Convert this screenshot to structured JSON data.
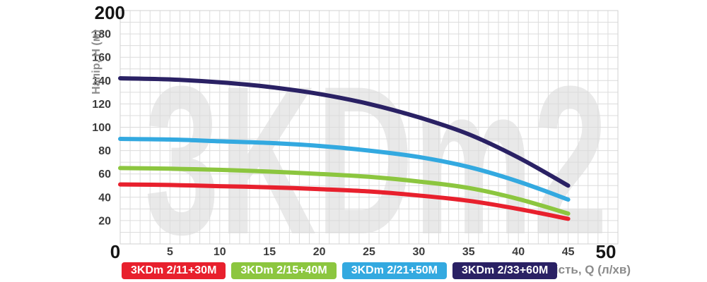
{
  "watermark": "3KDm2",
  "chart_data": {
    "type": "line",
    "title": "",
    "xlabel": "Продуктивність, Q (л/хв)",
    "ylabel": "Напір, H (м)",
    "xlim": [
      0,
      50
    ],
    "ylim": [
      0,
      200
    ],
    "x_ticks": [
      0,
      5,
      10,
      15,
      20,
      25,
      30,
      35,
      40,
      45,
      50
    ],
    "y_ticks": [
      20,
      40,
      60,
      80,
      100,
      120,
      140,
      160,
      180,
      200
    ],
    "grid": {
      "visible": true,
      "x_minor_step": 1,
      "y_minor_step": 10,
      "line_color": "#dcdcdc"
    },
    "legend_position": "bottom",
    "x": [
      0,
      5,
      10,
      15,
      20,
      25,
      30,
      35,
      40,
      45
    ],
    "series": [
      {
        "name": "3KDm 2/11+30M",
        "color": "#e8202d",
        "values": [
          51,
          50.5,
          49.5,
          48.5,
          47,
          45,
          41.5,
          37,
          30,
          21.5
        ]
      },
      {
        "name": "3KDm 2/15+40M",
        "color": "#8cc63f",
        "values": [
          65,
          64.5,
          63.5,
          62,
          60,
          57.5,
          53.5,
          48,
          38.5,
          26
        ]
      },
      {
        "name": "3KDm 2/21+50M",
        "color": "#33a9e0",
        "values": [
          90,
          89.5,
          88,
          86.5,
          84,
          80,
          74.5,
          66,
          53.5,
          38
        ]
      },
      {
        "name": "3KDm 2/33+60M",
        "color": "#2a2164",
        "values": [
          142,
          141,
          138.5,
          134.5,
          128.5,
          120,
          108.5,
          94,
          74,
          50
        ]
      }
    ]
  }
}
